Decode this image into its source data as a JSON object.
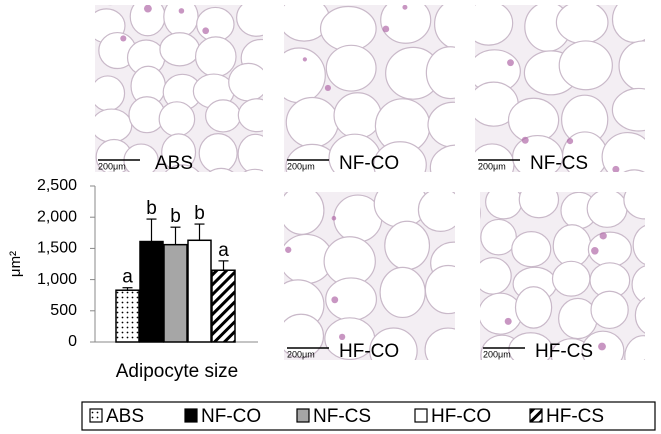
{
  "panels": [
    {
      "label": "ABS",
      "scale_bar": "200μm"
    },
    {
      "label": "NF-CO",
      "scale_bar": "200μm"
    },
    {
      "label": "NF-CS",
      "scale_bar": "200μm"
    },
    {
      "label": "HF-CO",
      "scale_bar": "200μm"
    },
    {
      "label": "HF-CS",
      "scale_bar": "200μm"
    }
  ],
  "chart_data": {
    "type": "bar",
    "y_label": "μm²",
    "categories": [
      "Adipocyte size"
    ],
    "ylim": [
      0,
      2500
    ],
    "yticks": [
      0,
      500,
      {
        "value": 1000,
        "label": "1,000"
      },
      {
        "value": 1500,
        "label": "1,500"
      },
      {
        "value": 2000,
        "label": "2,000"
      },
      {
        "value": 2500,
        "label": "2,500"
      }
    ],
    "series": [
      {
        "name": "ABS",
        "color": "#ffffff",
        "pattern": "dots",
        "values": [
          830
        ],
        "errors": [
          40
        ],
        "annotation": "a"
      },
      {
        "name": "NF-CO",
        "color": "#000000",
        "pattern": "solid",
        "values": [
          1610
        ],
        "errors": [
          360
        ],
        "annotation": "b"
      },
      {
        "name": "NF-CS",
        "color": "#a6a6a6",
        "pattern": "solid",
        "values": [
          1560
        ],
        "errors": [
          280
        ],
        "annotation": "b"
      },
      {
        "name": "HF-CO",
        "color": "#ffffff",
        "pattern": "solid",
        "values": [
          1630
        ],
        "errors": [
          260
        ],
        "annotation": "b"
      },
      {
        "name": "HF-CS",
        "color": "#ffffff",
        "pattern": "hatch",
        "values": [
          1150
        ],
        "errors": [
          150
        ],
        "annotation": "a"
      }
    ]
  }
}
